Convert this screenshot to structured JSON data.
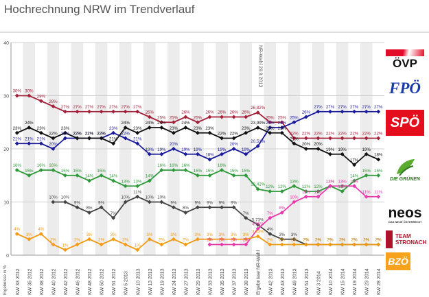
{
  "title": "Hochrechnung NRW im Trendverlauf",
  "chart_data": {
    "type": "line",
    "title": "Hochrechnung NRW im Trendverlauf",
    "ylabel": "Ergebnisse in %",
    "ylim": [
      0,
      40
    ],
    "yticks": [
      0,
      10,
      20,
      30,
      40
    ],
    "grid": true,
    "categories": [
      "KW 33 2012",
      "KW 35 2012",
      "KW 38 2012",
      "KW 40 2012",
      "KW 42 2012",
      "KW 46 2012",
      "KW 48 2012",
      "KW 50 2012",
      "KW 51 2012",
      "KW 5 2013",
      "KW 10 2013",
      "KW 13 2013",
      "KW 19 2013",
      "KW 24 2013",
      "KW 27 2013",
      "KW 29 2013",
      "KW 33 2013",
      "KW 35 2013",
      "KW 37 2013",
      "KW 38 2013",
      "Ergebnisse NR-Wahl",
      "KW 42 2013",
      "KW 43 2013",
      "KW 49 2013",
      "KW 51 2013",
      "KW 3 2014",
      "KW 10 2014",
      "KW 15 2014",
      "KW 19 2014",
      "KW 23 2014",
      "KW 28 2014"
    ],
    "annotation": {
      "text": "NR-Wahl 29.9.2013",
      "category_index": 20
    },
    "series": [
      {
        "name": "ÖVP",
        "color": "#a3213a",
        "values": [
          30,
          30,
          29,
          28,
          27,
          27,
          27,
          27,
          27,
          27,
          27,
          26,
          25,
          25,
          26,
          25,
          26,
          26,
          26,
          26,
          26.82,
          25,
          25,
          22,
          22,
          22,
          22,
          22,
          22,
          22,
          22
        ],
        "labels": [
          "30%",
          "30%",
          "29%",
          "28%",
          "27%",
          "27%",
          "27%",
          "27%",
          "27%",
          "27%",
          "27%",
          "26%",
          "25%",
          "25%",
          "26%",
          "25%",
          "26%",
          "26%",
          "26%",
          "26%",
          "26,82%",
          "25%",
          "25%",
          "22%",
          "22%",
          "22%",
          "22%",
          "22%",
          "22%",
          "22%",
          "22%"
        ]
      },
      {
        "name": "FPÖ",
        "color": "#1a1a9c",
        "values": [
          21,
          21,
          21,
          20,
          22,
          22,
          22,
          22,
          23,
          22,
          21,
          19,
          19,
          20,
          19,
          19,
          18,
          19,
          20,
          19,
          20.51,
          24,
          24,
          25,
          26,
          27,
          27,
          27,
          27,
          27,
          27
        ],
        "labels": [
          "21%",
          "21%",
          "21%",
          "20%",
          "22%",
          "22%",
          "22%",
          "22%",
          "23%",
          "22%",
          "21%",
          "19%",
          "19%",
          "20%",
          "19%",
          "19%",
          "18%",
          "19%",
          "20%",
          "19%",
          "20,51%",
          "24%",
          "24%",
          "25%",
          "26%",
          "27%",
          "27%",
          "27%",
          "27%",
          "27%",
          "27%"
        ]
      },
      {
        "name": "SPÖ",
        "color": "#111111",
        "values": [
          23,
          24,
          23,
          22,
          23,
          22,
          22,
          22,
          21,
          24,
          23,
          24,
          24,
          23,
          24,
          23,
          23,
          22,
          22,
          23,
          23.99,
          23,
          23,
          21,
          20,
          20,
          19,
          19,
          17,
          19,
          18
        ],
        "labels": [
          "23%",
          "24%",
          "23%",
          "22%",
          "23%",
          "22%",
          "22%",
          "22%",
          "21%",
          "24%",
          "23%",
          "24%",
          "24%",
          "23%",
          "24%",
          "23%",
          "23%",
          "22%",
          "22%",
          "23%",
          "23,99%",
          "23%",
          "23%",
          "21%",
          "20%",
          "20%",
          "19%",
          "19%",
          "17%",
          "19%",
          "18%"
        ]
      },
      {
        "name": "Die Grünen",
        "color": "#2e9a3a",
        "values": [
          16,
          15,
          16,
          16,
          15,
          15,
          14,
          15,
          14,
          13,
          13,
          14,
          16,
          16,
          16,
          15,
          15,
          16,
          15,
          15,
          12.42,
          12,
          12,
          13,
          12,
          12,
          13,
          12,
          14,
          15,
          15
        ],
        "labels": [
          "16%",
          "15%",
          "16%",
          "16%",
          "15%",
          "15%",
          "14%",
          "15%",
          "14%",
          "13%",
          "13%",
          "14%",
          "16%",
          "16%",
          "16%",
          "15%",
          "15%",
          "16%",
          "15%",
          "15%",
          "12,42%",
          "12%",
          "12%",
          "13%",
          "12%",
          "12%",
          "13%",
          "12%",
          "14%",
          "15%",
          "15%"
        ]
      },
      {
        "name": "Team Stronach",
        "color": "#444444",
        "values": [
          null,
          null,
          null,
          10,
          10,
          9,
          8,
          9,
          7,
          10,
          11,
          10,
          10,
          9,
          8,
          9,
          9,
          9,
          9,
          7,
          5.73,
          4,
          3,
          3,
          2,
          2,
          2,
          2,
          2,
          2,
          2
        ],
        "labels": [
          null,
          null,
          null,
          "10%",
          "10%",
          "9%",
          "8%",
          "9%",
          "7%",
          "10%",
          "11%",
          "10%",
          "10%",
          "9%",
          "8%",
          "9%",
          "9%",
          "9%",
          "9%",
          "7%",
          "5,73%",
          "4%",
          "3%",
          "3%",
          "2%",
          "2%",
          "2%",
          "2%",
          "2%",
          "2%",
          "2%"
        ]
      },
      {
        "name": "NEOS",
        "color": "#e83aad",
        "values": [
          null,
          null,
          null,
          null,
          null,
          null,
          null,
          null,
          null,
          null,
          null,
          null,
          null,
          null,
          null,
          null,
          2,
          2,
          2,
          2,
          4.96,
          7,
          8,
          10,
          11,
          11,
          13,
          13,
          13,
          11,
          11
        ],
        "labels": [
          null,
          null,
          null,
          null,
          null,
          null,
          null,
          null,
          null,
          null,
          null,
          null,
          null,
          null,
          null,
          null,
          "2%",
          "2%",
          "2%",
          "2%",
          "4,96%",
          "7%",
          "8%",
          "10%",
          "11%",
          "11%",
          "13%",
          "13%",
          "13%",
          "11%",
          "11%"
        ]
      },
      {
        "name": "BZÖ",
        "color": "#f29b12",
        "values": [
          4,
          3,
          4,
          2,
          1,
          2,
          3,
          2,
          3,
          2,
          1,
          3,
          2,
          3,
          2,
          3,
          3,
          3,
          3,
          3,
          3.53,
          2,
          2,
          2,
          2,
          2,
          2,
          2,
          2,
          2,
          2
        ],
        "labels": [
          "4%",
          "3%",
          "4%",
          "2%",
          "1%",
          "2%",
          "3%",
          "2%",
          "3%",
          "2%",
          "1%",
          "3%",
          "2%",
          "3%",
          "2%",
          "3%",
          "3%",
          "3%",
          "3%",
          "3%",
          "3,53%",
          "2%",
          "2%",
          "2%",
          "2%",
          "2%",
          "2%",
          "2%",
          "2%",
          "2%",
          "2%"
        ]
      }
    ]
  },
  "legend": {
    "oevp": "ÖVP",
    "fpoe": "FPÖ",
    "spoe": "SPÖ",
    "gruene": "DIE GRÜNEN",
    "neos": "neos",
    "neos_sub": "DAS NEUE ÖSTERREICH",
    "stronach_1": "TEAM",
    "stronach_2": "STRONACH",
    "bzoe": "BZÖ"
  }
}
